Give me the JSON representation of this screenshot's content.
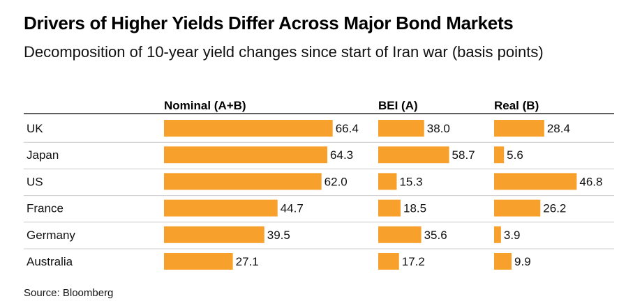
{
  "title": "Drivers of Higher Yields Differ Across Major Bond Markets",
  "subtitle": "Decomposition of 10-year yield changes since start of Iran war (basis points)",
  "source": "Source: Bloomberg",
  "colors": {
    "bar": "#F7A12C",
    "rule": "#000000",
    "row_divider": "#cccccc"
  },
  "chart_data": {
    "type": "bar",
    "orientation": "horizontal",
    "categories": [
      "UK",
      "Japan",
      "US",
      "France",
      "Germany",
      "Australia"
    ],
    "series": [
      {
        "name": "Nominal (A+B)",
        "values": [
          66.4,
          64.3,
          62.0,
          44.7,
          39.5,
          27.1
        ]
      },
      {
        "name": "BEI (A)",
        "values": [
          38.0,
          58.7,
          15.3,
          18.5,
          35.6,
          17.2
        ]
      },
      {
        "name": "Real (B)",
        "values": [
          28.4,
          5.6,
          46.8,
          26.2,
          3.9,
          9.9
        ]
      }
    ],
    "value_labels": [
      [
        "66.4",
        "64.3",
        "62.0",
        "44.7",
        "39.5",
        "27.1"
      ],
      [
        "38.0",
        "58.7",
        "15.3",
        "18.5",
        "35.6",
        "17.2"
      ],
      [
        "28.4",
        "5.6",
        "46.8",
        "26.2",
        "3.9",
        "9.9"
      ]
    ],
    "unit": "basis points"
  }
}
